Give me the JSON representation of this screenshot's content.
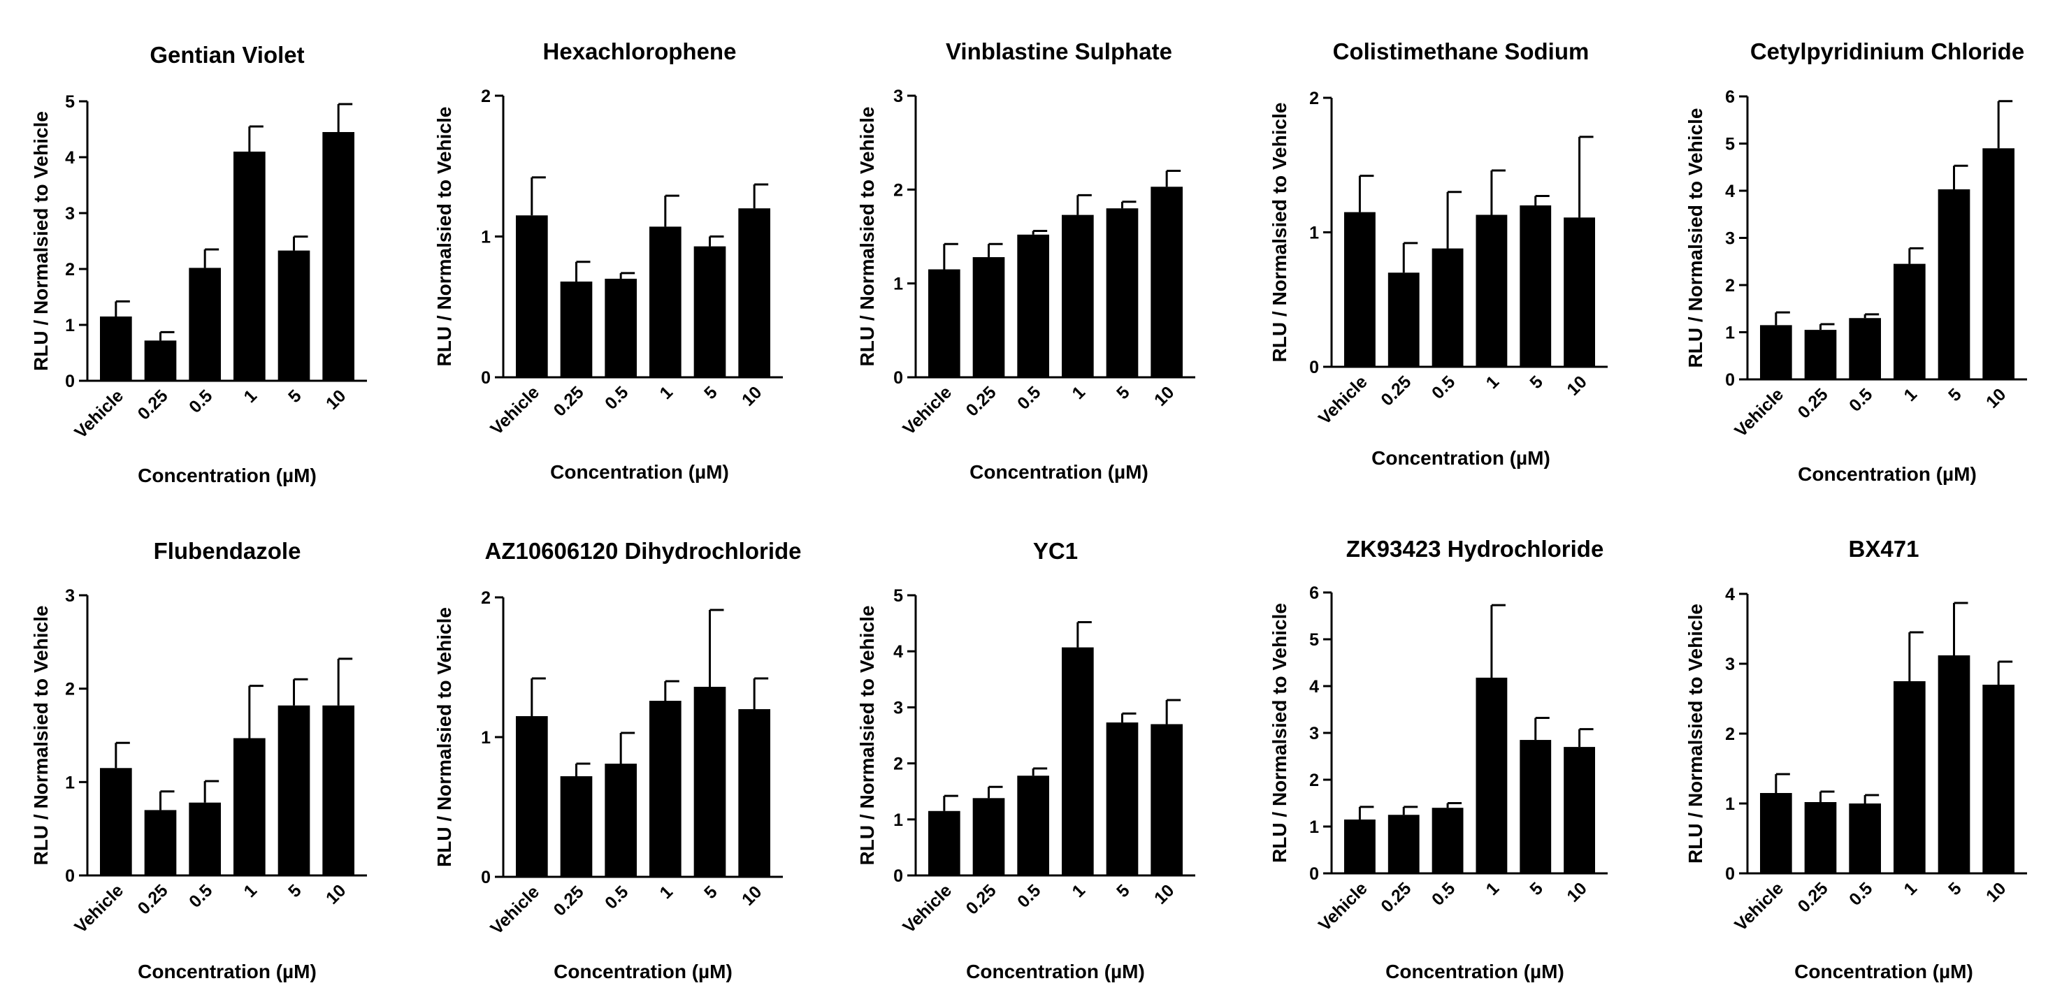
{
  "chart_data": [
    {
      "type": "bar",
      "title": "Gentian Violet",
      "xlabel": "Concentration (µM)",
      "ylabel": "RLU / Normalsied to Vehicle",
      "categories": [
        "Vehicle",
        "0.25",
        "0.5",
        "1",
        "5",
        "10"
      ],
      "values": [
        1.15,
        0.72,
        2.02,
        4.1,
        2.33,
        4.45
      ],
      "errors": [
        0.27,
        0.15,
        0.33,
        0.45,
        0.25,
        0.5
      ],
      "ylim": [
        0,
        5
      ],
      "yticks": [
        "0",
        "1",
        "2",
        "3",
        "4",
        "5"
      ]
    },
    {
      "type": "bar",
      "title": "Hexachlorophene",
      "xlabel": "Concentration (µM)",
      "ylabel": "RLU / Normalsied to Vehicle",
      "categories": [
        "Vehicle",
        "0.25",
        "0.5",
        "1",
        "5",
        "10"
      ],
      "values": [
        1.15,
        0.68,
        0.7,
        1.07,
        0.93,
        1.2
      ],
      "errors": [
        0.27,
        0.14,
        0.04,
        0.22,
        0.07,
        0.17
      ],
      "ylim": [
        0,
        2
      ],
      "yticks": [
        "0",
        "1",
        "2"
      ]
    },
    {
      "type": "bar",
      "title": "Vinblastine Sulphate",
      "xlabel": "Concentration (µM)",
      "ylabel": "RLU / Normalsied to Vehicle",
      "categories": [
        "Vehicle",
        "0.25",
        "0.5",
        "1",
        "5",
        "10"
      ],
      "values": [
        1.15,
        1.28,
        1.52,
        1.73,
        1.8,
        2.03
      ],
      "errors": [
        0.27,
        0.14,
        0.04,
        0.21,
        0.07,
        0.17
      ],
      "ylim": [
        0,
        3
      ],
      "yticks": [
        "0",
        "1",
        "2",
        "3"
      ]
    },
    {
      "type": "bar",
      "title": "Colistimethane Sodium",
      "xlabel": "Concentration (µM)",
      "ylabel": "RLU / Normalsied to Vehicle",
      "categories": [
        "Vehicle",
        "0.25",
        "0.5",
        "1",
        "5",
        "10"
      ],
      "values": [
        1.15,
        0.7,
        0.88,
        1.13,
        1.2,
        1.11
      ],
      "errors": [
        0.27,
        0.22,
        0.42,
        0.33,
        0.07,
        0.6
      ],
      "ylim": [
        0,
        2
      ],
      "yticks": [
        "0",
        "1",
        "2"
      ]
    },
    {
      "type": "bar",
      "title": "Cetylpyridinium Chloride",
      "xlabel": "Concentration (µM)",
      "ylabel": "RLU / Normalsied to Vehicle",
      "categories": [
        "Vehicle",
        "0.25",
        "0.5",
        "1",
        "5",
        "10"
      ],
      "values": [
        1.15,
        1.05,
        1.3,
        2.45,
        4.03,
        4.9
      ],
      "errors": [
        0.27,
        0.12,
        0.08,
        0.33,
        0.5,
        1.0
      ],
      "ylim": [
        0,
        6
      ],
      "yticks": [
        "0",
        "1",
        "2",
        "3",
        "4",
        "5",
        "6"
      ]
    },
    {
      "type": "bar",
      "title": "Flubendazole",
      "xlabel": "Concentration (µM)",
      "ylabel": "RLU / Normalsied to Vehicle",
      "categories": [
        "Vehicle",
        "0.25",
        "0.5",
        "1",
        "5",
        "10"
      ],
      "values": [
        1.15,
        0.7,
        0.78,
        1.47,
        1.82,
        1.82
      ],
      "errors": [
        0.27,
        0.2,
        0.23,
        0.56,
        0.28,
        0.5
      ],
      "ylim": [
        0,
        3
      ],
      "yticks": [
        "0",
        "1",
        "2",
        "3"
      ]
    },
    {
      "type": "bar",
      "title": "AZ10606120 Dihydrochloride",
      "xlabel": "Concentration (µM)",
      "ylabel": "RLU / Normalsied to Vehicle",
      "categories": [
        "Vehicle",
        "0.25",
        "0.5",
        "1",
        "5",
        "10"
      ],
      "values": [
        1.15,
        0.72,
        0.81,
        1.26,
        1.36,
        1.2
      ],
      "errors": [
        0.27,
        0.09,
        0.22,
        0.14,
        0.55,
        0.22
      ],
      "ylim": [
        0,
        2
      ],
      "yticks": [
        "0",
        "1",
        "2"
      ]
    },
    {
      "type": "bar",
      "title": "YC1",
      "xlabel": "Concentration (µM)",
      "ylabel": "RLU / Normalsied to Vehicle",
      "categories": [
        "Vehicle",
        "0.25",
        "0.5",
        "1",
        "5",
        "10"
      ],
      "values": [
        1.15,
        1.38,
        1.78,
        4.07,
        2.73,
        2.7
      ],
      "errors": [
        0.27,
        0.2,
        0.13,
        0.45,
        0.16,
        0.43
      ],
      "ylim": [
        0,
        5
      ],
      "yticks": [
        "0",
        "1",
        "2",
        "3",
        "4",
        "5"
      ]
    },
    {
      "type": "bar",
      "title": "ZK93423 Hydrochloride",
      "xlabel": "Concentration (µM)",
      "ylabel": "RLU / Normalsied to Vehicle",
      "categories": [
        "Vehicle",
        "0.25",
        "0.5",
        "1",
        "5",
        "10"
      ],
      "values": [
        1.15,
        1.25,
        1.4,
        4.18,
        2.85,
        2.7
      ],
      "errors": [
        0.27,
        0.17,
        0.1,
        1.55,
        0.47,
        0.38
      ],
      "ylim": [
        0,
        6
      ],
      "yticks": [
        "0",
        "1",
        "2",
        "3",
        "4",
        "5",
        "6"
      ]
    },
    {
      "type": "bar",
      "title": "BX471",
      "xlabel": "Concentration (µM)",
      "ylabel": "RLU / Normalsied to Vehicle",
      "categories": [
        "Vehicle",
        "0.25",
        "0.5",
        "1",
        "5",
        "10"
      ],
      "values": [
        1.15,
        1.02,
        1.0,
        2.75,
        3.12,
        2.7
      ],
      "errors": [
        0.27,
        0.15,
        0.12,
        0.7,
        0.75,
        0.33
      ],
      "ylim": [
        0,
        4
      ],
      "yticks": [
        "0",
        "1",
        "2",
        "3",
        "4"
      ]
    }
  ]
}
